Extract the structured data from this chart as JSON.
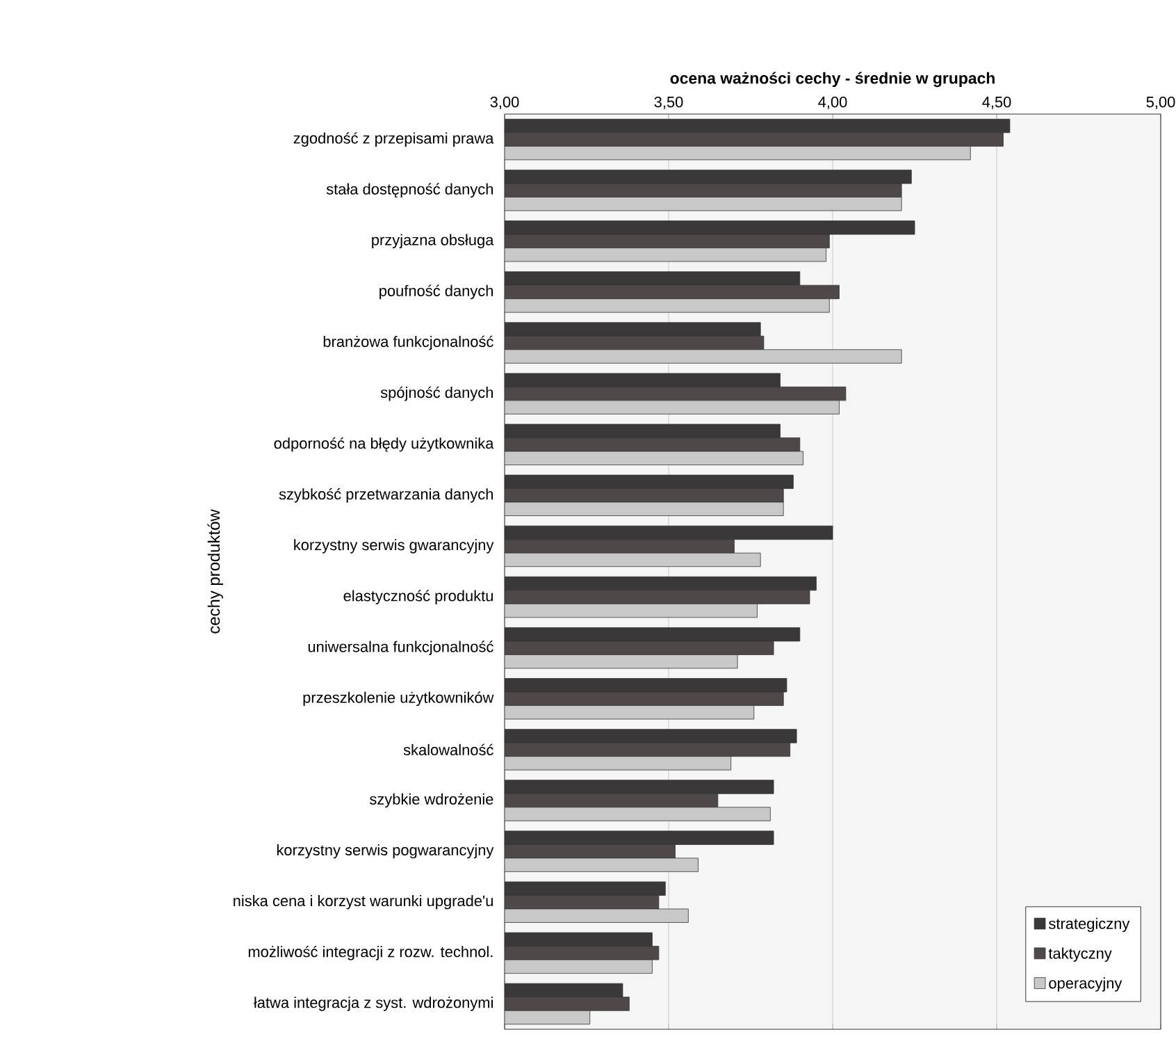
{
  "chart_data": {
    "type": "bar",
    "orientation": "horizontal",
    "xlabel": "ocena ważności cechy - średnie w grupach",
    "ylabel": "cechy produktów",
    "categories": [
      "zgodność z przepisami prawa",
      "stała dostępność danych",
      "przyjazna obsługa",
      "poufność danych",
      "branżowa funkcjonalność",
      "spójność danych",
      "odporność na błędy użytkownika",
      "szybkość przetwarzania danych",
      "korzystny serwis gwarancyjny",
      "elastyczność produktu",
      "uniwersalna funkcjonalność",
      "przeszkolenie użytkowników",
      "skalowalność",
      "szybkie wdrożenie",
      "korzystny serwis pogwarancyjny",
      "niska cena i korzyst warunki upgrade'u",
      "możliwość integracji z rozw. technol.",
      "łatwa integracja z syst. wdrożonymi"
    ],
    "series": [
      {
        "name": "strategiczny",
        "color": "#3a3838",
        "values": [
          4.54,
          4.24,
          4.25,
          3.9,
          3.78,
          3.84,
          3.84,
          3.88,
          4.0,
          3.95,
          3.9,
          3.86,
          3.89,
          3.82,
          3.82,
          3.49,
          3.45,
          3.36
        ]
      },
      {
        "name": "taktyczny",
        "color": "#4e4848",
        "values": [
          4.52,
          4.21,
          3.99,
          4.02,
          3.79,
          4.04,
          3.9,
          3.85,
          3.7,
          3.93,
          3.82,
          3.85,
          3.87,
          3.65,
          3.52,
          3.47,
          3.47,
          3.38
        ]
      },
      {
        "name": "operacyjny",
        "color": "#c8c8c8",
        "values": [
          4.42,
          4.21,
          3.98,
          3.99,
          4.21,
          4.02,
          3.91,
          3.85,
          3.78,
          3.77,
          3.71,
          3.76,
          3.69,
          3.81,
          3.59,
          3.56,
          3.45,
          3.26
        ]
      }
    ],
    "xlim": [
      3,
      5
    ],
    "xticks": [
      {
        "value": 3,
        "label": "3,00"
      },
      {
        "value": 3.5,
        "label": "3,50"
      },
      {
        "value": 4,
        "label": "4,00"
      },
      {
        "value": 4.5,
        "label": "4,50"
      },
      {
        "value": 5,
        "label": "5,00"
      }
    ],
    "grid": "x",
    "legend": "bottom right"
  }
}
